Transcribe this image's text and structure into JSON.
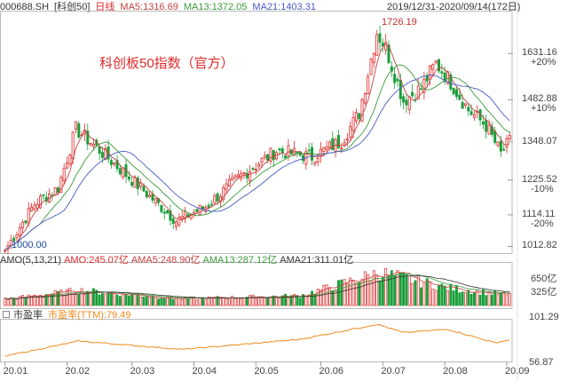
{
  "header": {
    "code": "000688.SH",
    "name": "[科创50]",
    "period": "日线",
    "ma5": "MA5:1316.69",
    "ma13": "MA13:1372.05",
    "ma21": "MA21:1403.31",
    "range": "2019/12/31-2020/09/14(172日)"
  },
  "annotation": {
    "title": "科创板50指数（官方）",
    "high_label": "1726.19",
    "low_label": "1000.00"
  },
  "price_axis": [
    {
      "value": "1631.16",
      "pct": "+20%"
    },
    {
      "value": "1482.88",
      "pct": "+10%"
    },
    {
      "value": "1348.07",
      "pct": ""
    },
    {
      "value": "1225.52",
      "pct": "-10%"
    },
    {
      "value": "1114.11",
      "pct": "-20%"
    },
    {
      "value": "1012.82",
      "pct": ""
    }
  ],
  "amo_header": {
    "amo": "AMO(5,13,21)",
    "amo_val": "AMO:245.07亿",
    "ama5": "AMA5:248.90亿",
    "ama13": "AMA13:287.12亿",
    "ama21": "AMA21:311.01亿"
  },
  "amo_axis": [
    "650亿",
    "325亿"
  ],
  "pe_header": {
    "title": "市盈率",
    "ttm": "市盈率(TTM):79.49"
  },
  "pe_axis": [
    "101.29",
    "56.87"
  ],
  "x_axis": [
    "20.01",
    "20.02",
    "20.03",
    "20.04",
    "20.05",
    "20.06",
    "20.07",
    "20.08",
    "20.09"
  ],
  "colors": {
    "up": "#e02a2a",
    "down": "#1a9e3a",
    "ma5": "#c44040",
    "ma13": "#3a9a3a",
    "ma21": "#4a5ac8",
    "pe": "#f08a1a"
  },
  "chart_data": {
    "type": "line",
    "title": "科创板50指数（官方）",
    "x_range": [
      "2019/12/31",
      "2020/09/14"
    ],
    "trading_days": 172,
    "ylim": [
      1000,
      1760
    ],
    "pe_ylim": [
      56.87,
      101.29
    ],
    "series": [
      {
        "name": "MA5",
        "last": 1316.69
      },
      {
        "name": "MA13",
        "last": 1372.05
      },
      {
        "name": "MA21",
        "last": 1403.31
      }
    ],
    "close_keypoints": [
      {
        "day": 0,
        "value": 1000
      },
      {
        "day": 10,
        "value": 1150
      },
      {
        "day": 18,
        "value": 1200
      },
      {
        "day": 24,
        "value": 1390
      },
      {
        "day": 31,
        "value": 1330
      },
      {
        "day": 42,
        "value": 1235
      },
      {
        "day": 58,
        "value": 1095
      },
      {
        "day": 68,
        "value": 1140
      },
      {
        "day": 80,
        "value": 1240
      },
      {
        "day": 92,
        "value": 1320
      },
      {
        "day": 104,
        "value": 1300
      },
      {
        "day": 114,
        "value": 1350
      },
      {
        "day": 120,
        "value": 1440
      },
      {
        "day": 126,
        "value": 1700
      },
      {
        "day": 129,
        "value": 1650
      },
      {
        "day": 135,
        "value": 1480
      },
      {
        "day": 141,
        "value": 1520
      },
      {
        "day": 146,
        "value": 1600
      },
      {
        "day": 151,
        "value": 1540
      },
      {
        "day": 157,
        "value": 1450
      },
      {
        "day": 163,
        "value": 1400
      },
      {
        "day": 168,
        "value": 1310
      },
      {
        "day": 171,
        "value": 1350
      }
    ],
    "amo_ylim": [
      0,
      975
    ],
    "amo_keypoints": [
      {
        "day": 0,
        "value": 150
      },
      {
        "day": 25,
        "value": 360
      },
      {
        "day": 60,
        "value": 160
      },
      {
        "day": 100,
        "value": 230
      },
      {
        "day": 127,
        "value": 780
      },
      {
        "day": 150,
        "value": 420
      },
      {
        "day": 171,
        "value": 245
      }
    ],
    "pe_keypoints": [
      {
        "day": 0,
        "value": 60
      },
      {
        "day": 25,
        "value": 78
      },
      {
        "day": 60,
        "value": 68
      },
      {
        "day": 100,
        "value": 80
      },
      {
        "day": 126,
        "value": 98
      },
      {
        "day": 135,
        "value": 88
      },
      {
        "day": 150,
        "value": 92
      },
      {
        "day": 166,
        "value": 76
      },
      {
        "day": 171,
        "value": 79.49
      }
    ]
  }
}
